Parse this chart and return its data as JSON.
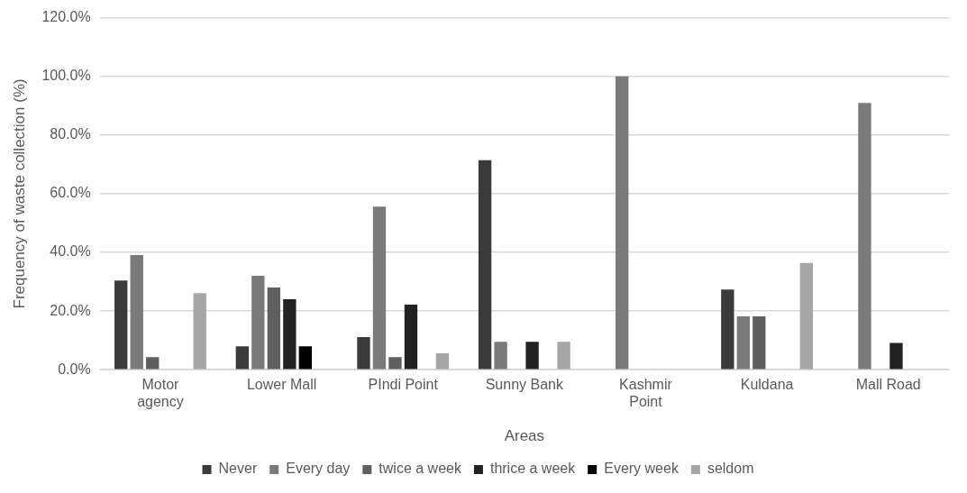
{
  "chart_data": {
    "type": "bar",
    "xlabel": "Areas",
    "ylabel": "Frequency of waste collection (%)",
    "categories": [
      "Motor agency",
      "Lower Mall",
      "PIndi Point",
      "Sunny Bank",
      "Kashmir Point",
      "Kuldana",
      "Mall Road"
    ],
    "series": [
      {
        "name": "Never",
        "color": "#3a3a3a",
        "values": [
          30.4,
          8,
          11.1,
          71.4,
          0,
          27.3,
          0
        ]
      },
      {
        "name": "Every day",
        "color": "#7a7a7a",
        "values": [
          39.1,
          32,
          55.6,
          9.5,
          100,
          18.2,
          90.9
        ]
      },
      {
        "name": "twice a week",
        "color": "#5f5f5f",
        "values": [
          4.3,
          28,
          4.3,
          0,
          0,
          18.2,
          0
        ]
      },
      {
        "name": "thrice a week",
        "color": "#222222",
        "values": [
          0,
          24,
          22.2,
          9.5,
          0,
          0,
          9.1
        ]
      },
      {
        "name": "Every week",
        "color": "#000000",
        "values": [
          0,
          8,
          0,
          0,
          0,
          0,
          0
        ]
      },
      {
        "name": "seldom",
        "color": "#a6a6a6",
        "values": [
          26.1,
          0,
          5.6,
          9.5,
          0,
          36.4,
          0
        ]
      }
    ],
    "ylim": [
      0,
      120
    ],
    "yticks": [
      {
        "value": 0,
        "label": "0.0%"
      },
      {
        "value": 20,
        "label": "20.0%"
      },
      {
        "value": 40,
        "label": "40.0%"
      },
      {
        "value": 60,
        "label": "60.0%"
      },
      {
        "value": 80,
        "label": "80.0%"
      },
      {
        "value": 100,
        "label": "100.0%"
      },
      {
        "value": 120,
        "label": "120.0%"
      }
    ],
    "grid": "y",
    "legend": "bottom"
  }
}
